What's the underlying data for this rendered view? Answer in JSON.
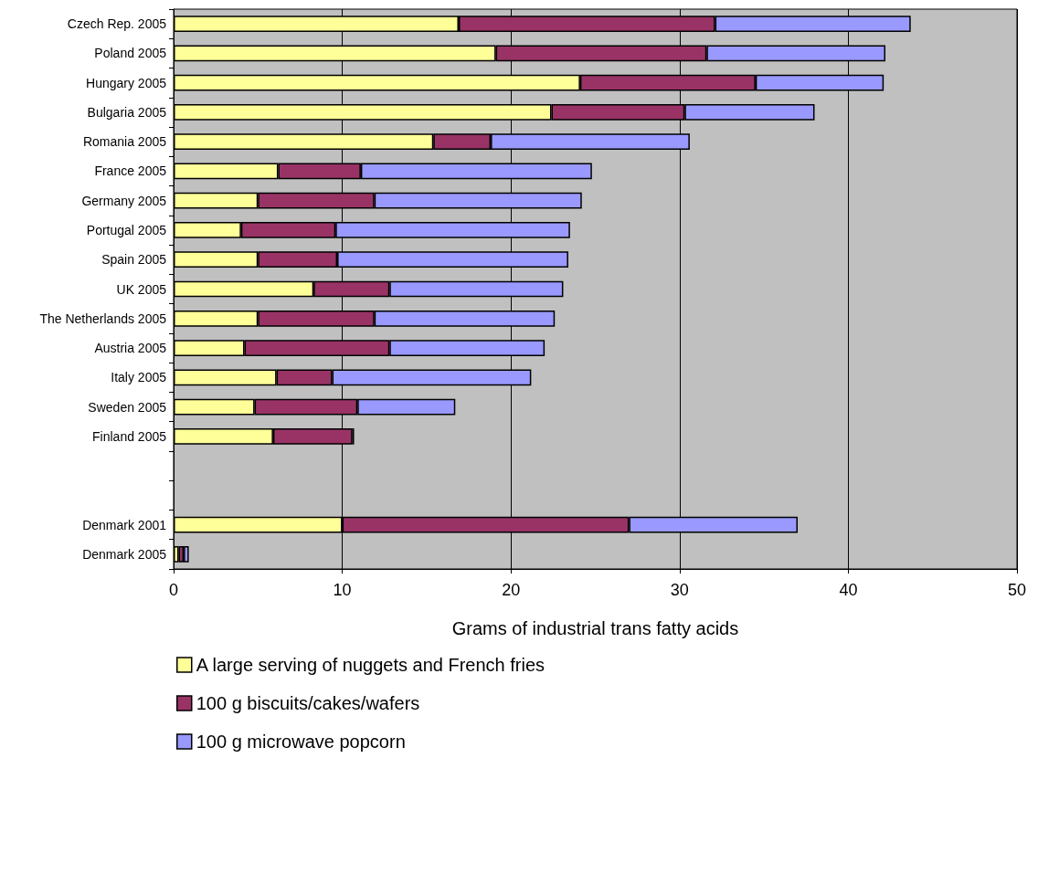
{
  "chart_data": {
    "type": "bar",
    "orientation": "horizontal",
    "stacked": true,
    "categories": [
      "Czech Rep. 2005",
      "Poland 2005",
      "Hungary 2005",
      "Bulgaria 2005",
      "Romania 2005",
      "France 2005",
      "Germany 2005",
      "Portugal 2005",
      "Spain 2005",
      "UK 2005",
      "The Netherlands 2005",
      "Austria 2005",
      "Italy 2005",
      "Sweden 2005",
      "Finland 2005",
      null,
      null,
      "Denmark 2001",
      "Denmark 2005"
    ],
    "series": [
      {
        "name": "A large serving of nuggets and French fries",
        "color": "#ffff99",
        "values": [
          16.9,
          19.1,
          24.1,
          22.4,
          15.4,
          6.2,
          5.0,
          4.0,
          5.0,
          8.3,
          5.0,
          4.2,
          6.1,
          4.8,
          5.9,
          null,
          null,
          10,
          0.3
        ]
      },
      {
        "name": "100 g biscuits/cakes/wafers",
        "color": "#993366",
        "values": [
          15.2,
          12.5,
          10.4,
          7.9,
          3.4,
          4.9,
          6.9,
          5.6,
          4.7,
          4.5,
          6.9,
          8.6,
          3.3,
          6.1,
          4.7,
          null,
          null,
          17,
          0.3
        ]
      },
      {
        "name": "100 g microwave popcorn",
        "color": "#9999ff",
        "values": [
          11.6,
          10.6,
          7.6,
          7.7,
          11.8,
          13.7,
          12.3,
          13.9,
          13.7,
          10.3,
          10.7,
          9.2,
          11.8,
          5.8,
          0.1,
          null,
          null,
          10,
          0.3
        ]
      }
    ],
    "xlabel": "Grams of industrial trans fatty acids",
    "xlim": [
      0,
      50
    ],
    "xticks": [
      0,
      10,
      20,
      30,
      40,
      50
    ],
    "grid": "x",
    "legend": "bottom"
  }
}
